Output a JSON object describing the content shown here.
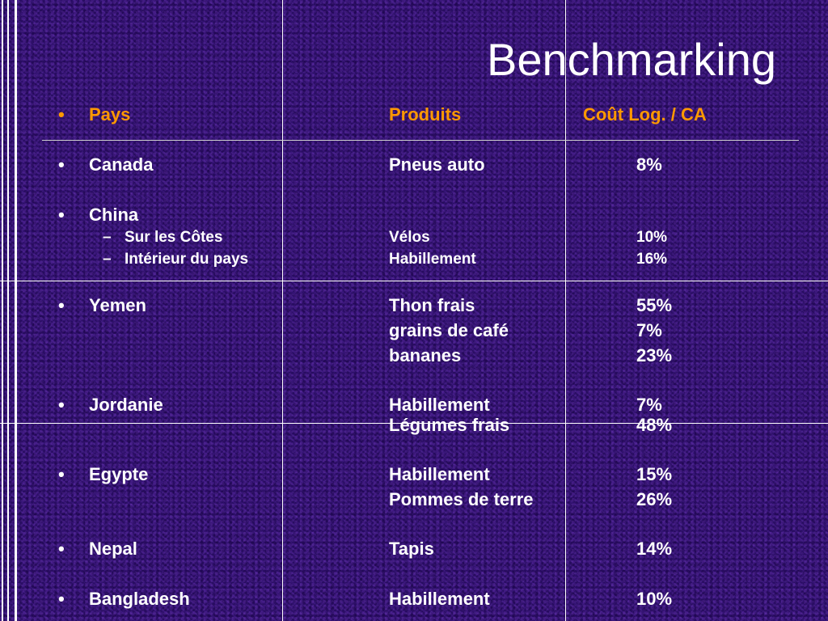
{
  "slide": {
    "title": "Benchmarking"
  },
  "header": {
    "bullet": "•",
    "country": "Pays",
    "product": "Produits",
    "ratio": "Coût Log. / CA"
  },
  "symbols": {
    "bullet": "•",
    "dash": "–"
  },
  "rows": [
    {
      "country": "Canada",
      "product": "Pneus auto",
      "pct": "8%"
    },
    {
      "country": "China",
      "product": "",
      "pct": ""
    },
    {
      "sub": "Sur les Côtes",
      "product": "Vélos",
      "pct": "10%"
    },
    {
      "sub": "Intérieur du pays",
      "product": "Habillement",
      "pct": "16%"
    },
    {
      "country": "Yemen",
      "product": "Thon frais",
      "pct": "55%"
    },
    {
      "product": "grains de café",
      "pct": "7%"
    },
    {
      "product": "bananes",
      "pct": "23%"
    },
    {
      "country": "Jordanie",
      "product": "Habillement",
      "pct": "7%"
    },
    {
      "product": "Légumes frais",
      "pct": "48%"
    },
    {
      "country": "Egypte",
      "product": "Habillement",
      "pct": "15%"
    },
    {
      "product": "Pommes de terre",
      "pct": "26%"
    },
    {
      "country": "Nepal",
      "product": "Tapis",
      "pct": "14%"
    },
    {
      "country": "Bangladesh",
      "product": "Habillement",
      "pct": "10%"
    }
  ],
  "colors": {
    "background": "#2c0f68",
    "header_text": "#ff9900",
    "body_text": "#ffffff"
  }
}
